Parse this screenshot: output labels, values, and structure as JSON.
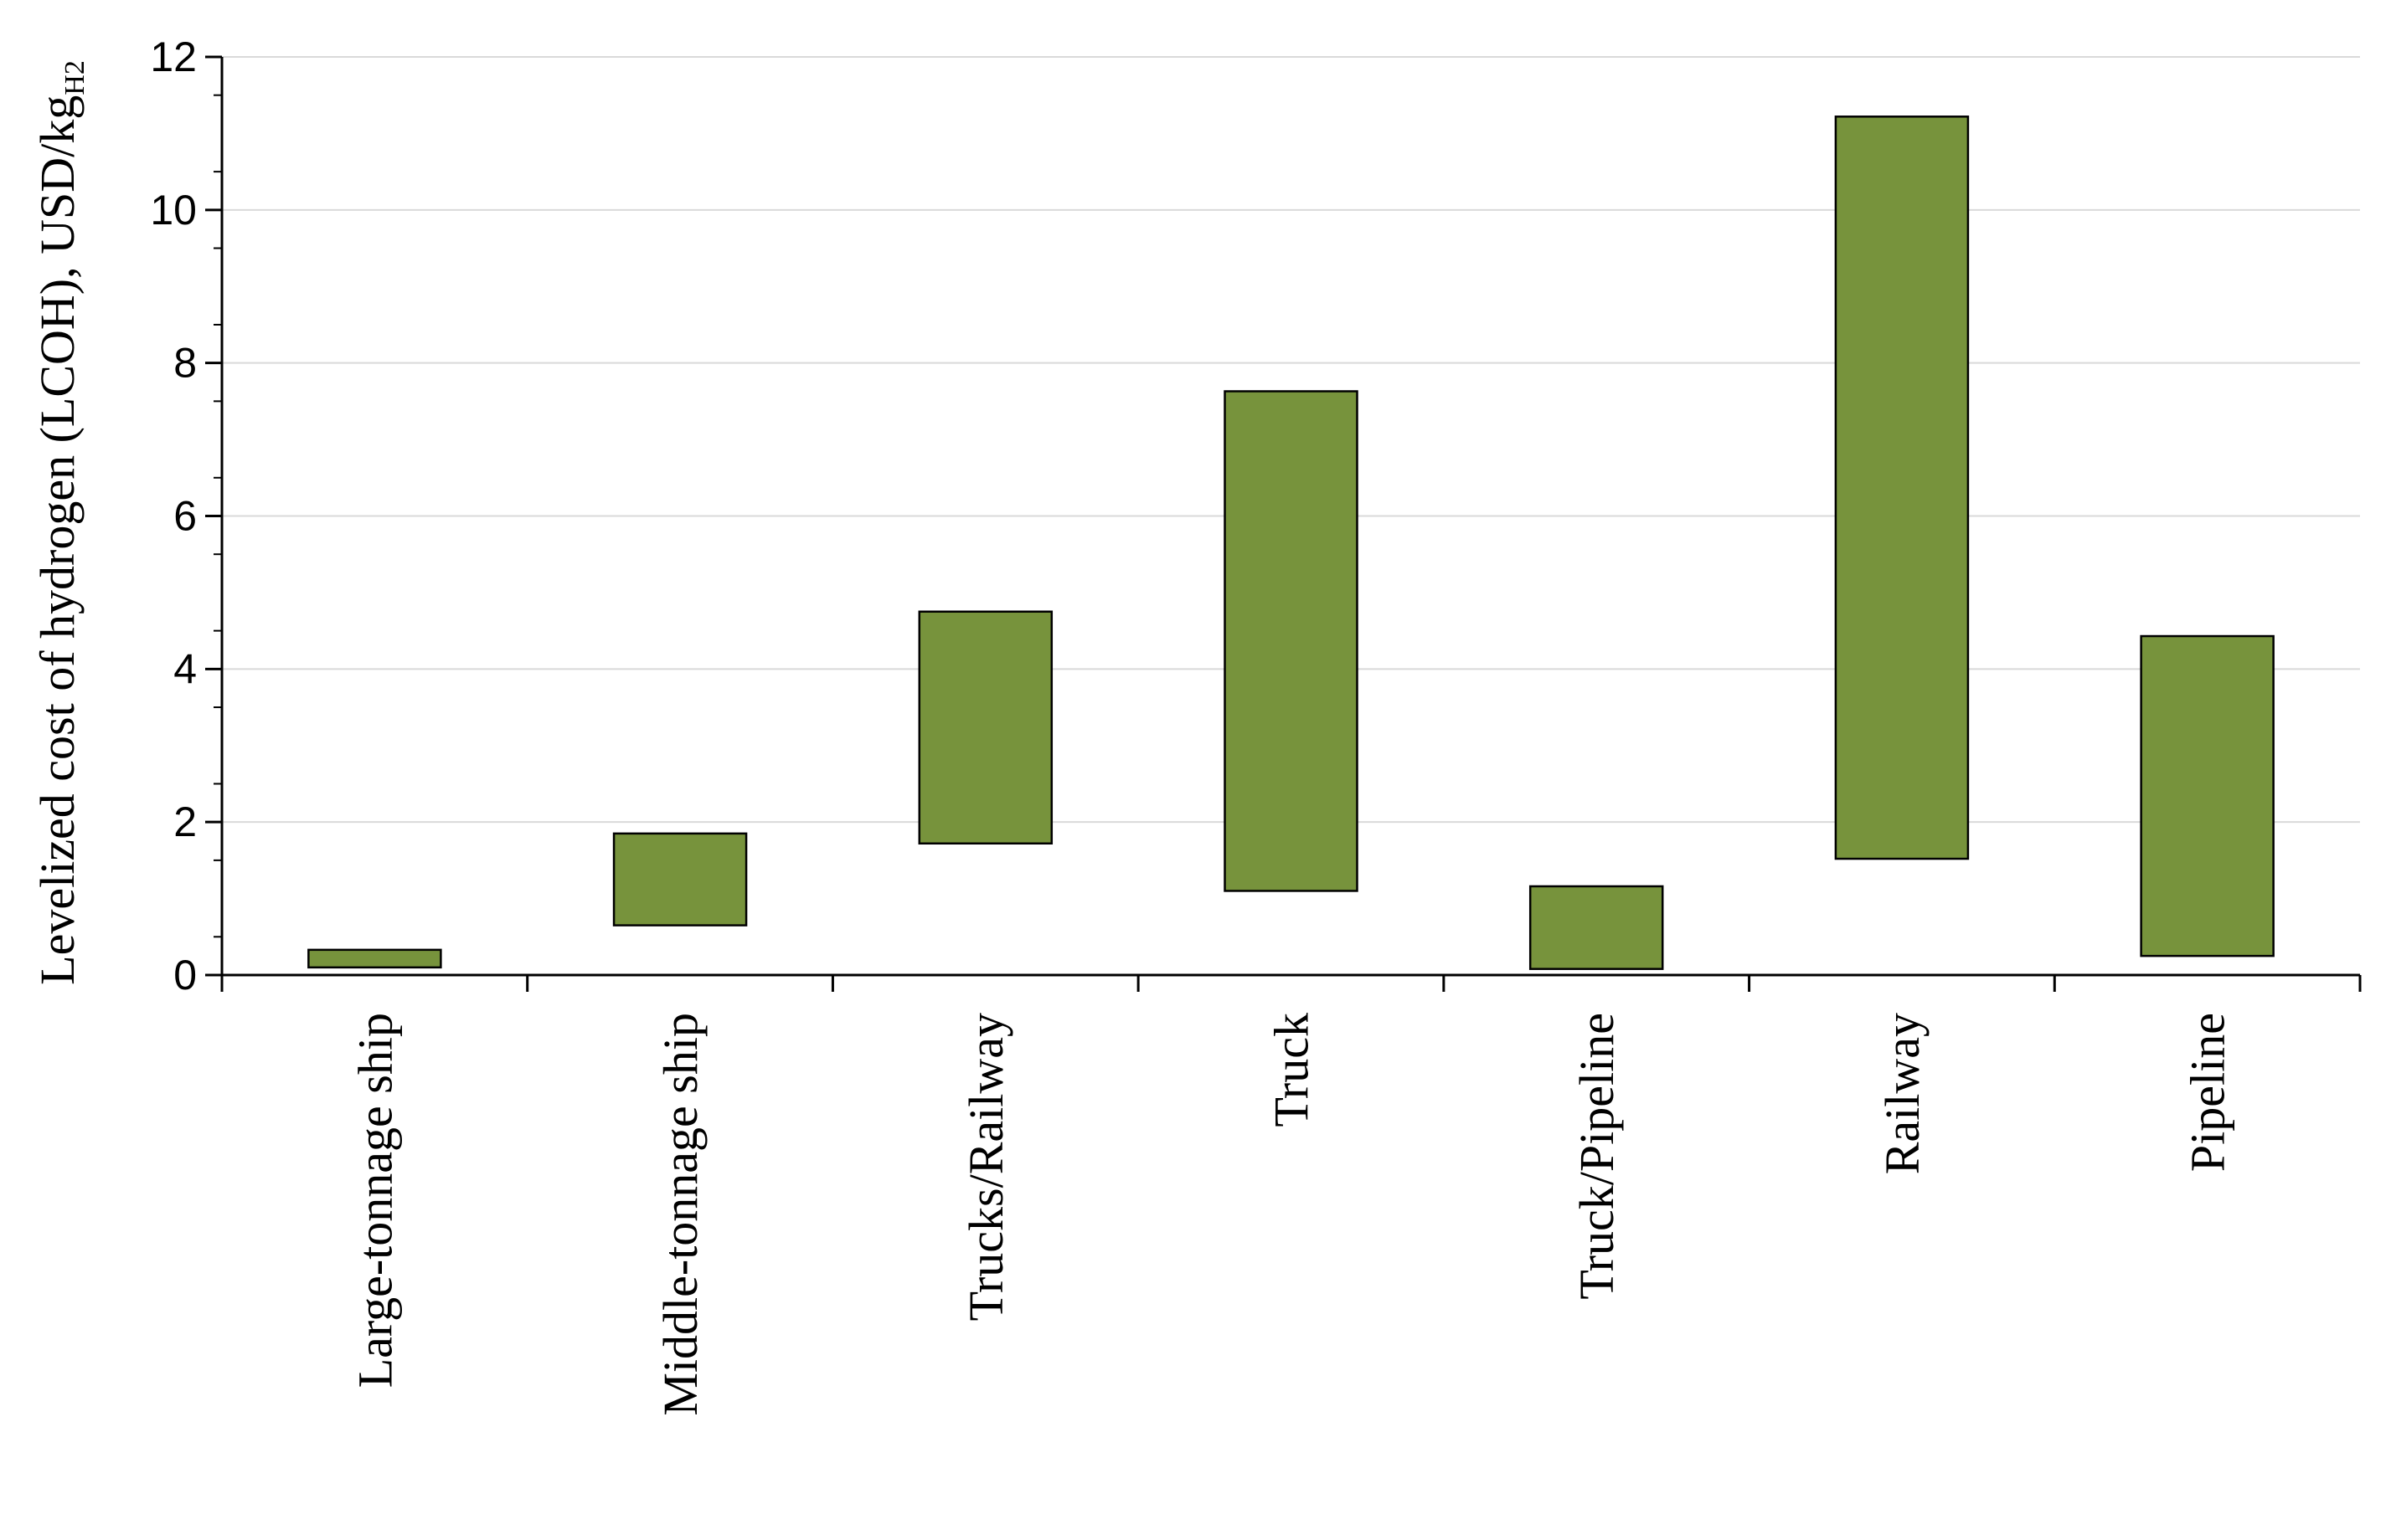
{
  "chart_data": {
    "type": "bar",
    "subtype": "floating-range",
    "title": "",
    "xlabel": "",
    "ylabel": "Levelized cost of hydrogen (LCOH), USD/kg",
    "ylabel_subscript": "H2",
    "ylim": [
      0,
      12
    ],
    "yticks": [
      "0",
      "2",
      "4",
      "6",
      "8",
      "10",
      "12"
    ],
    "grid": "horizontal",
    "bar_color": "#77933c",
    "categories": [
      "Large-tonnage ship",
      "Middle-tonnage ship",
      "Trucks/Railway",
      "Truck",
      "Truck/Pipeline",
      "Railway",
      "Pipeline"
    ],
    "low": [
      0.1,
      0.65,
      1.72,
      1.1,
      0.08,
      1.52,
      0.25
    ],
    "high": [
      0.33,
      1.85,
      4.75,
      7.63,
      1.16,
      11.22,
      4.43
    ]
  }
}
